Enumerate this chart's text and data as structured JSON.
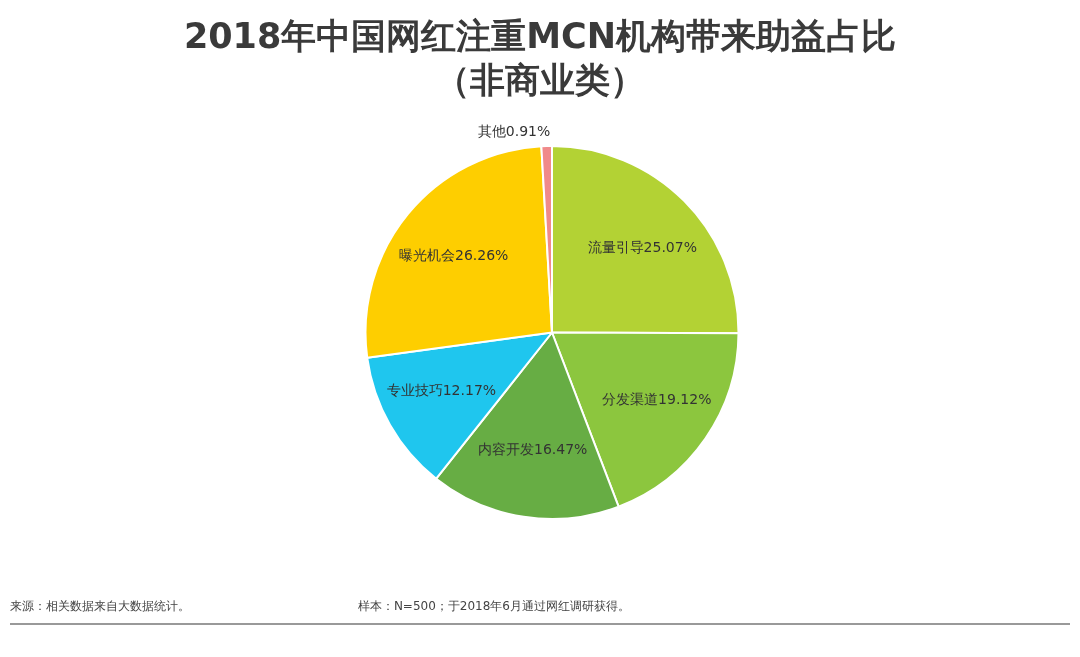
{
  "chart_data": {
    "type": "pie",
    "title": "2018年中国网红注重MCN机构带来助益占比（非商业类）",
    "categories": [
      "流量引导",
      "分发渠道",
      "内容开发",
      "专业技巧",
      "曝光机会",
      "其他"
    ],
    "values": [
      25.07,
      19.12,
      16.47,
      12.17,
      26.26,
      0.91
    ],
    "value_labels": [
      "25.07%",
      "19.12%",
      "16.47%",
      "12.17%",
      "26.26%",
      "0.91%"
    ],
    "colors": [
      "#b3d234",
      "#8cc63e",
      "#67ad44",
      "#1fc6ee",
      "#fece00",
      "#f08a8a"
    ],
    "legend": false,
    "annotations": [
      "来源：相关数据来自大数据统计。",
      "样本：N=500；于2018年6月通过网红调研获得。"
    ]
  }
}
